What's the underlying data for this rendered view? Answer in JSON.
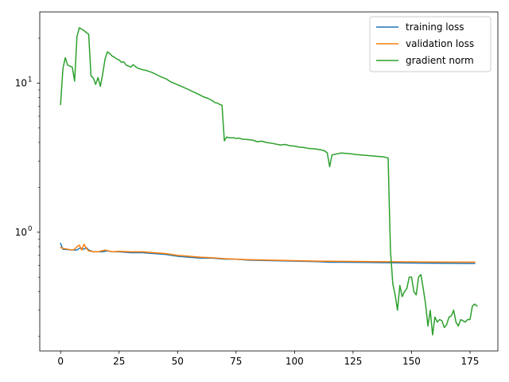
{
  "chart_data": {
    "type": "line",
    "title": "",
    "xlabel": "",
    "ylabel": "",
    "xlim": [
      -8.9,
      186.9
    ],
    "ylim": [
      0.16,
      30.0
    ],
    "yscale": "log",
    "grid": false,
    "legend_position": "top-right",
    "x_ticks": [
      0,
      25,
      50,
      75,
      100,
      125,
      150,
      175
    ],
    "x_tick_labels": [
      "0",
      "25",
      "50",
      "75",
      "100",
      "125",
      "150",
      "175"
    ],
    "y_major_ticks": [
      1,
      10
    ],
    "y_major_tick_labels": [
      {
        "base": "10",
        "exp": "0"
      },
      {
        "base": "10",
        "exp": "1"
      }
    ],
    "y_minor_ticks": [
      0.2,
      0.3,
      0.4,
      0.5,
      0.6,
      0.7,
      0.8,
      0.9,
      2,
      3,
      4,
      5,
      6,
      7,
      8,
      9,
      20
    ],
    "series": [
      {
        "name": "training loss",
        "color": "#1f77b4",
        "points": [
          [
            0,
            0.84
          ],
          [
            1,
            0.77
          ],
          [
            5,
            0.76
          ],
          [
            7,
            0.76
          ],
          [
            8,
            0.78
          ],
          [
            9,
            0.78
          ],
          [
            10,
            0.77
          ],
          [
            11,
            0.79
          ],
          [
            12,
            0.76
          ],
          [
            14,
            0.74
          ],
          [
            16,
            0.74
          ],
          [
            18,
            0.74
          ],
          [
            20,
            0.75
          ],
          [
            22,
            0.74
          ],
          [
            25,
            0.74
          ],
          [
            30,
            0.73
          ],
          [
            35,
            0.73
          ],
          [
            40,
            0.72
          ],
          [
            45,
            0.71
          ],
          [
            50,
            0.69
          ],
          [
            55,
            0.68
          ],
          [
            60,
            0.67
          ],
          [
            65,
            0.67
          ],
          [
            70,
            0.66
          ],
          [
            75,
            0.66
          ],
          [
            80,
            0.65
          ],
          [
            90,
            0.645
          ],
          [
            100,
            0.64
          ],
          [
            110,
            0.635
          ],
          [
            115,
            0.63
          ],
          [
            120,
            0.63
          ],
          [
            130,
            0.628
          ],
          [
            140,
            0.625
          ],
          [
            150,
            0.622
          ],
          [
            160,
            0.62
          ],
          [
            170,
            0.618
          ],
          [
            177,
            0.617
          ]
        ]
      },
      {
        "name": "validation loss",
        "color": "#ff7f0e",
        "points": [
          [
            0,
            0.79
          ],
          [
            1,
            0.78
          ],
          [
            5,
            0.76
          ],
          [
            6,
            0.77
          ],
          [
            7,
            0.8
          ],
          [
            8,
            0.82
          ],
          [
            9,
            0.76
          ],
          [
            10,
            0.83
          ],
          [
            11,
            0.78
          ],
          [
            12,
            0.75
          ],
          [
            14,
            0.74
          ],
          [
            16,
            0.74
          ],
          [
            19,
            0.76
          ],
          [
            22,
            0.74
          ],
          [
            25,
            0.745
          ],
          [
            30,
            0.74
          ],
          [
            35,
            0.74
          ],
          [
            40,
            0.73
          ],
          [
            45,
            0.72
          ],
          [
            50,
            0.7
          ],
          [
            55,
            0.69
          ],
          [
            60,
            0.68
          ],
          [
            65,
            0.675
          ],
          [
            70,
            0.665
          ],
          [
            75,
            0.66
          ],
          [
            80,
            0.655
          ],
          [
            90,
            0.65
          ],
          [
            100,
            0.645
          ],
          [
            110,
            0.64
          ],
          [
            120,
            0.638
          ],
          [
            130,
            0.636
          ],
          [
            140,
            0.634
          ],
          [
            150,
            0.633
          ],
          [
            160,
            0.632
          ],
          [
            170,
            0.631
          ],
          [
            177,
            0.631
          ]
        ]
      },
      {
        "name": "gradient norm",
        "color": "#2ca02c",
        "points": [
          [
            0,
            7.2
          ],
          [
            1,
            12.5
          ],
          [
            2,
            14.8
          ],
          [
            3,
            13.2
          ],
          [
            4,
            13.0
          ],
          [
            5,
            12.8
          ],
          [
            6,
            10.3
          ],
          [
            7,
            20.5
          ],
          [
            8,
            23.5
          ],
          [
            9,
            23.0
          ],
          [
            10,
            22.5
          ],
          [
            11,
            21.8
          ],
          [
            12,
            21.3
          ],
          [
            13,
            11.2
          ],
          [
            14,
            10.8
          ],
          [
            15,
            9.8
          ],
          [
            16,
            10.9
          ],
          [
            17,
            9.5
          ],
          [
            18,
            11.5
          ],
          [
            19,
            14.5
          ],
          [
            20,
            16.2
          ],
          [
            21,
            15.8
          ],
          [
            22,
            15.2
          ],
          [
            23,
            14.9
          ],
          [
            24,
            14.5
          ],
          [
            25,
            14.3
          ],
          [
            26,
            13.8
          ],
          [
            27,
            13.9
          ],
          [
            28,
            13.2
          ],
          [
            29,
            13.0
          ],
          [
            30,
            12.8
          ],
          [
            31,
            13.3
          ],
          [
            32,
            12.9
          ],
          [
            33,
            12.6
          ],
          [
            35,
            12.3
          ],
          [
            37,
            12.1
          ],
          [
            39,
            11.8
          ],
          [
            41,
            11.4
          ],
          [
            43,
            11.0
          ],
          [
            45,
            10.7
          ],
          [
            47,
            10.2
          ],
          [
            49,
            9.9
          ],
          [
            51,
            9.6
          ],
          [
            53,
            9.3
          ],
          [
            55,
            9.0
          ],
          [
            57,
            8.7
          ],
          [
            59,
            8.4
          ],
          [
            61,
            8.1
          ],
          [
            63,
            7.9
          ],
          [
            65,
            7.6
          ],
          [
            66,
            7.4
          ],
          [
            67,
            7.35
          ],
          [
            68,
            7.2
          ],
          [
            69,
            7.1
          ],
          [
            70,
            4.1
          ],
          [
            71,
            4.35
          ],
          [
            72,
            4.3
          ],
          [
            74,
            4.3
          ],
          [
            75,
            4.25
          ],
          [
            76,
            4.28
          ],
          [
            78,
            4.2
          ],
          [
            80,
            4.18
          ],
          [
            82,
            4.15
          ],
          [
            84,
            4.05
          ],
          [
            86,
            4.08
          ],
          [
            88,
            4.0
          ],
          [
            90,
            3.96
          ],
          [
            92,
            3.9
          ],
          [
            94,
            3.85
          ],
          [
            96,
            3.88
          ],
          [
            98,
            3.8
          ],
          [
            100,
            3.78
          ],
          [
            102,
            3.72
          ],
          [
            104,
            3.7
          ],
          [
            106,
            3.65
          ],
          [
            108,
            3.63
          ],
          [
            110,
            3.6
          ],
          [
            112,
            3.55
          ],
          [
            113,
            3.5
          ],
          [
            114,
            3.4
          ],
          [
            115,
            2.75
          ],
          [
            116,
            3.3
          ],
          [
            118,
            3.35
          ],
          [
            120,
            3.4
          ],
          [
            122,
            3.38
          ],
          [
            124,
            3.36
          ],
          [
            126,
            3.32
          ],
          [
            128,
            3.3
          ],
          [
            130,
            3.28
          ],
          [
            132,
            3.26
          ],
          [
            134,
            3.24
          ],
          [
            136,
            3.22
          ],
          [
            138,
            3.2
          ],
          [
            140,
            3.15
          ],
          [
            140.5,
            1.5
          ],
          [
            141,
            0.75
          ],
          [
            142,
            0.45
          ],
          [
            143,
            0.38
          ],
          [
            144,
            0.3
          ],
          [
            145,
            0.44
          ],
          [
            146,
            0.37
          ],
          [
            147,
            0.4
          ],
          [
            148,
            0.42
          ],
          [
            149,
            0.5
          ],
          [
            150,
            0.5
          ],
          [
            151,
            0.4
          ],
          [
            152,
            0.38
          ],
          [
            153,
            0.5
          ],
          [
            154,
            0.52
          ],
          [
            155,
            0.42
          ],
          [
            156,
            0.33
          ],
          [
            157,
            0.235
          ],
          [
            158,
            0.3
          ],
          [
            159,
            0.205
          ],
          [
            160,
            0.27
          ],
          [
            161,
            0.25
          ],
          [
            162,
            0.26
          ],
          [
            163,
            0.255
          ],
          [
            164,
            0.23
          ],
          [
            165,
            0.24
          ],
          [
            166,
            0.27
          ],
          [
            167,
            0.275
          ],
          [
            168,
            0.3
          ],
          [
            169,
            0.25
          ],
          [
            170,
            0.235
          ],
          [
            171,
            0.26
          ],
          [
            172,
            0.255
          ],
          [
            173,
            0.25
          ],
          [
            174,
            0.26
          ],
          [
            175,
            0.26
          ],
          [
            176,
            0.32
          ],
          [
            177,
            0.33
          ],
          [
            178,
            0.32
          ]
        ]
      }
    ]
  }
}
